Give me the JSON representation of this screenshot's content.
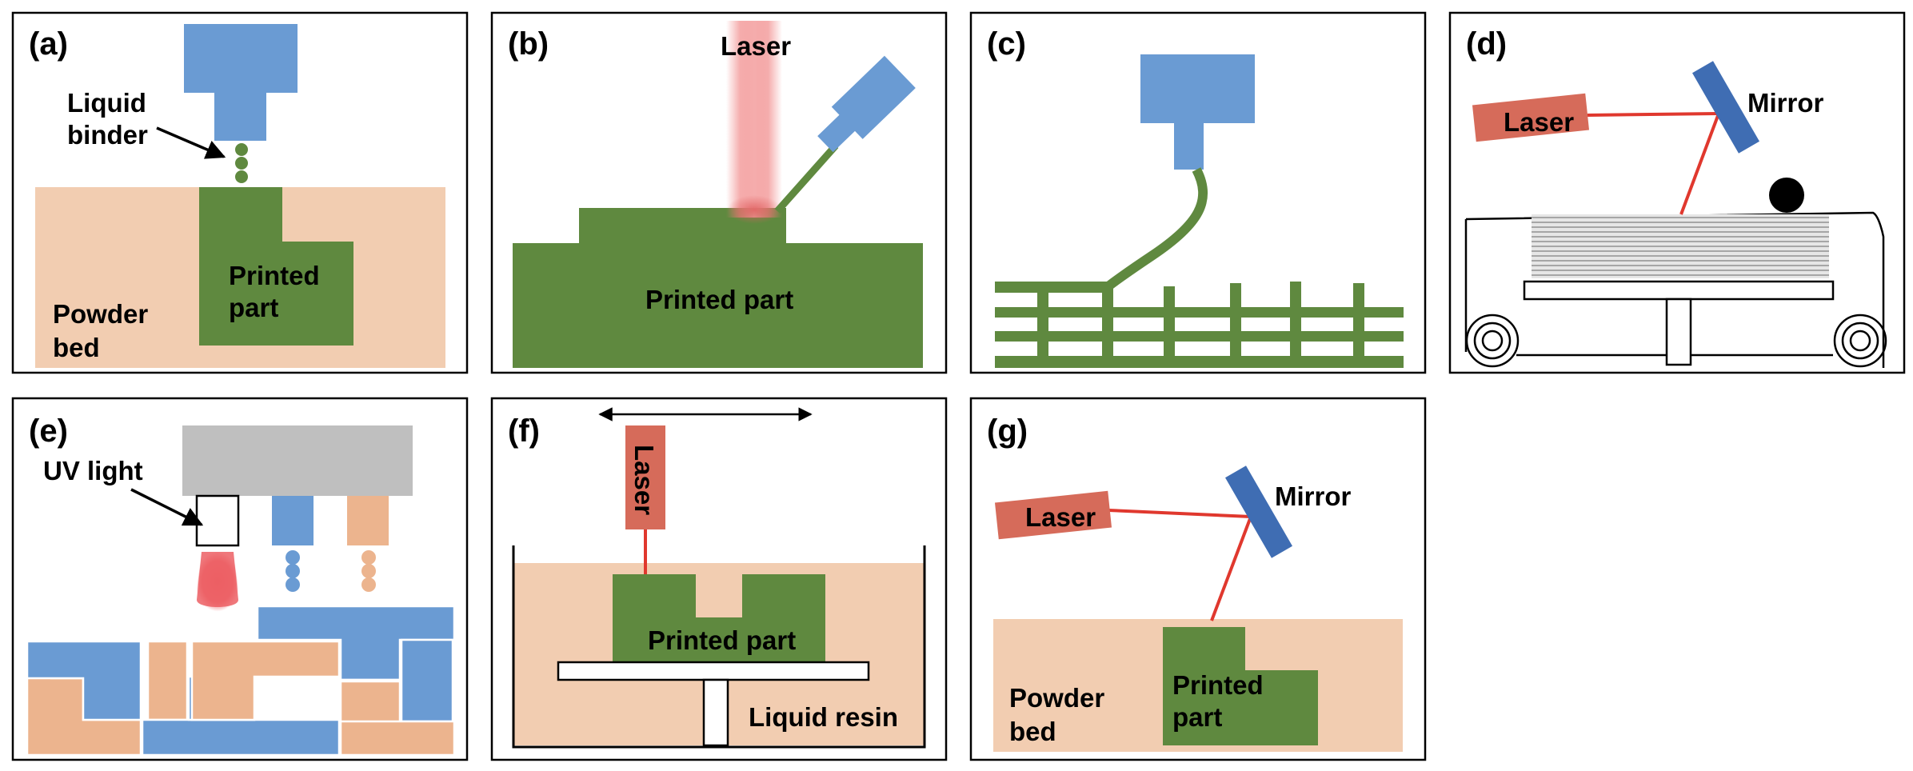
{
  "colors": {
    "powder": "#f2cdb1",
    "part": "#5f893f",
    "nozzle": "#6a9bd3",
    "laser_box": "#d66b5a",
    "beam": "#e0382e",
    "mirror": "#3f6db3",
    "grey_head": "#bfbfbf",
    "tan_material": "#ecb48e",
    "blue_material": "#6a9bd3",
    "uv_glow": "#ec5f64"
  },
  "panels": {
    "a": {
      "id": "(a)",
      "binder_label_1": "Liquid",
      "binder_label_2": "binder",
      "part_label_1": "Printed",
      "part_label_2": "part",
      "bed_label_1": "Powder",
      "bed_label_2": "bed"
    },
    "b": {
      "id": "(b)",
      "laser_label": "Laser",
      "part_label": "Printed part"
    },
    "c": {
      "id": "(c)"
    },
    "d": {
      "id": "(d)",
      "laser_label": "Laser",
      "mirror_label": "Mirror"
    },
    "e": {
      "id": "(e)",
      "uv_label": "UV light"
    },
    "f": {
      "id": "(f)",
      "laser_label": "Laser",
      "part_label": "Printed part",
      "resin_label": "Liquid resin"
    },
    "g": {
      "id": "(g)",
      "laser_label": "Laser",
      "mirror_label": "Mirror",
      "part_label_1": "Printed",
      "part_label_2": "part",
      "bed_label_1": "Powder",
      "bed_label_2": "bed"
    }
  }
}
